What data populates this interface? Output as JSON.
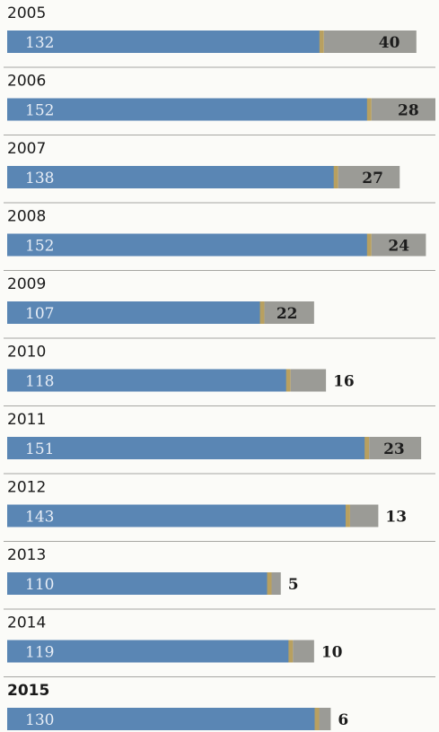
{
  "chart_data": {
    "type": "bar",
    "orientation": "horizontal",
    "stacked": true,
    "categories": [
      "2005",
      "2006",
      "2007",
      "2008",
      "2009",
      "2010",
      "2011",
      "2012",
      "2013",
      "2014",
      "2015"
    ],
    "highlight_category": "2015",
    "series": [
      {
        "values": [
          132,
          152,
          138,
          152,
          107,
          118,
          151,
          143,
          110,
          119,
          130
        ]
      },
      {
        "values": [
          40,
          28,
          27,
          24,
          22,
          16,
          23,
          13,
          5,
          10,
          6
        ]
      }
    ],
    "colors": {
      "primary": "#5a86b4",
      "secondary": "#9b9b96",
      "accent": "#b8a060",
      "separator": "#8a8a86",
      "background": "#fbfbf8"
    },
    "title": "",
    "xlabel": "",
    "ylabel": "",
    "grid": false,
    "legend": "none"
  }
}
